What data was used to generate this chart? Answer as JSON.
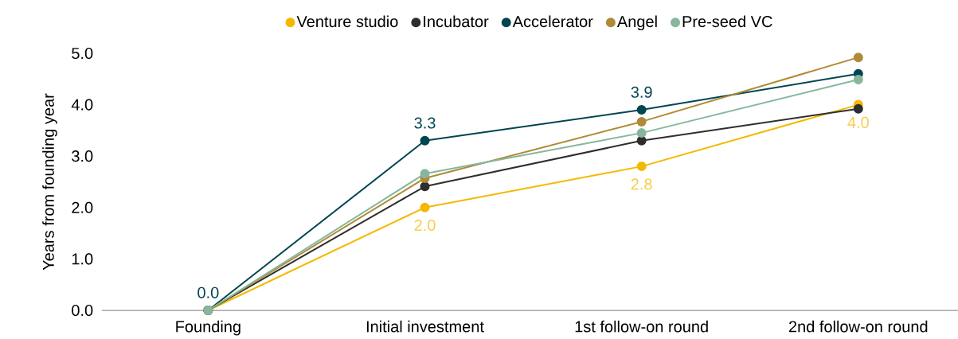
{
  "chart_data": {
    "type": "line",
    "ylabel": "Years from founding year",
    "categories": [
      "Founding",
      "Initial investment",
      "1st follow-on round",
      "2nd follow-on round"
    ],
    "series": [
      {
        "name": "Venture studio",
        "color": "#f5b800",
        "values": [
          0,
          2.0,
          2.8,
          4.0
        ],
        "value_labels": [
          null,
          "2.0",
          "2.8",
          "4.0"
        ]
      },
      {
        "name": "Incubator",
        "color": "#2e2e2e",
        "values": [
          0,
          2.41,
          3.3,
          3.92
        ]
      },
      {
        "name": "Accelerator",
        "color": "#004650",
        "values": [
          0,
          3.3,
          3.9,
          4.6
        ],
        "value_labels": [
          "0.0",
          "3.3",
          "3.9",
          null
        ]
      },
      {
        "name": "Angel",
        "color": "#b08a35",
        "values": [
          0,
          2.57,
          3.67,
          4.92
        ]
      },
      {
        "name": "Pre-seed VC",
        "color": "#86b79c",
        "values": [
          0,
          2.66,
          3.45,
          4.49
        ]
      }
    ],
    "ylim": [
      0,
      5
    ],
    "yticks": [
      {
        "value": 0,
        "label": "0.0"
      },
      {
        "value": 1,
        "label": "1.0"
      },
      {
        "value": 2,
        "label": "2.0"
      },
      {
        "value": 3,
        "label": "3.0"
      },
      {
        "value": 4,
        "label": "4.0"
      },
      {
        "value": 5,
        "label": "5.0"
      }
    ],
    "legend": "top",
    "marker": "circle",
    "line_style": "solid",
    "grid": false
  }
}
